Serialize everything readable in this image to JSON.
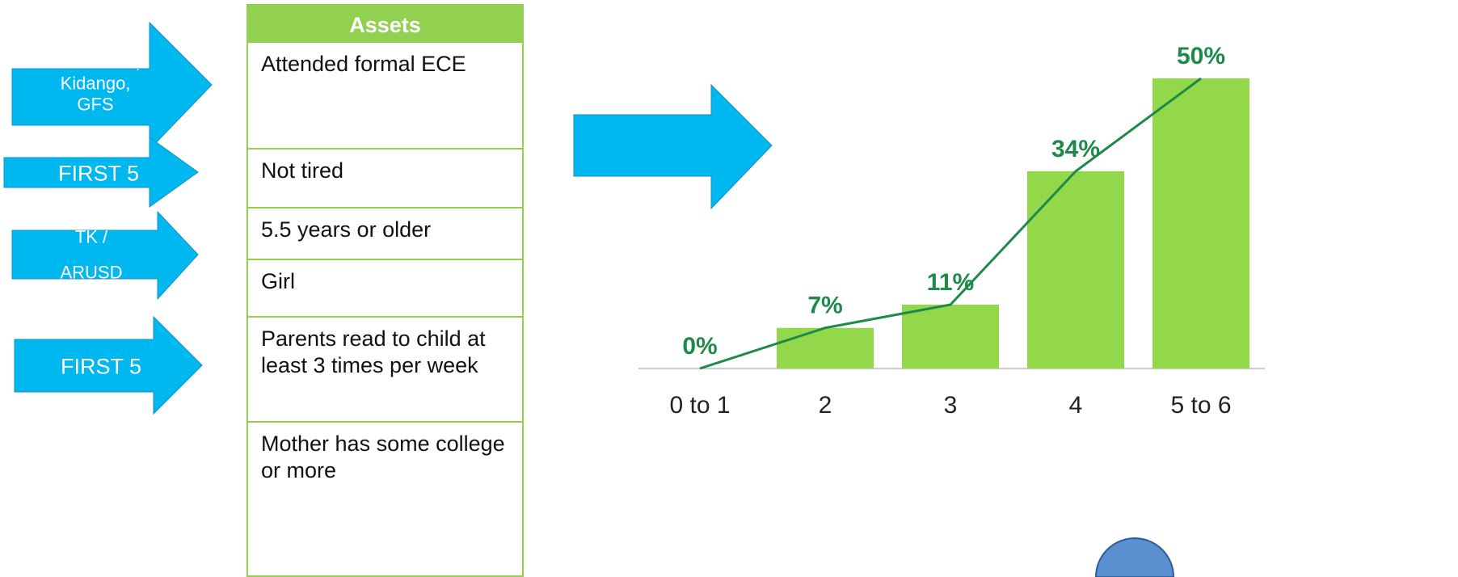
{
  "arrows": [
    {
      "lines": [
        "Head Start,",
        "Kidango,",
        "GFS"
      ]
    },
    {
      "lines": [
        "FIRST 5"
      ]
    },
    {
      "lines": [
        "TK /",
        "ARUSD"
      ]
    },
    {
      "lines": [
        "FIRST 5"
      ]
    }
  ],
  "table": {
    "header": "Assets",
    "rows": [
      "Attended formal ECE",
      "Not tired",
      "5.5 years or older",
      "Girl",
      "Parents read to child at least 3 times per week",
      "Mother has some college or more"
    ]
  },
  "chart_data": {
    "type": "bar",
    "categories": [
      "0 to 1",
      "2",
      "3",
      "4",
      "5 to 6"
    ],
    "values": [
      0,
      7,
      11,
      34,
      50
    ],
    "value_labels": [
      "0%",
      "7%",
      "11%",
      "34%",
      "50%"
    ],
    "color": "#92d84a",
    "line_color": "#1e8a4a",
    "label_color": "#1e8a4a"
  }
}
